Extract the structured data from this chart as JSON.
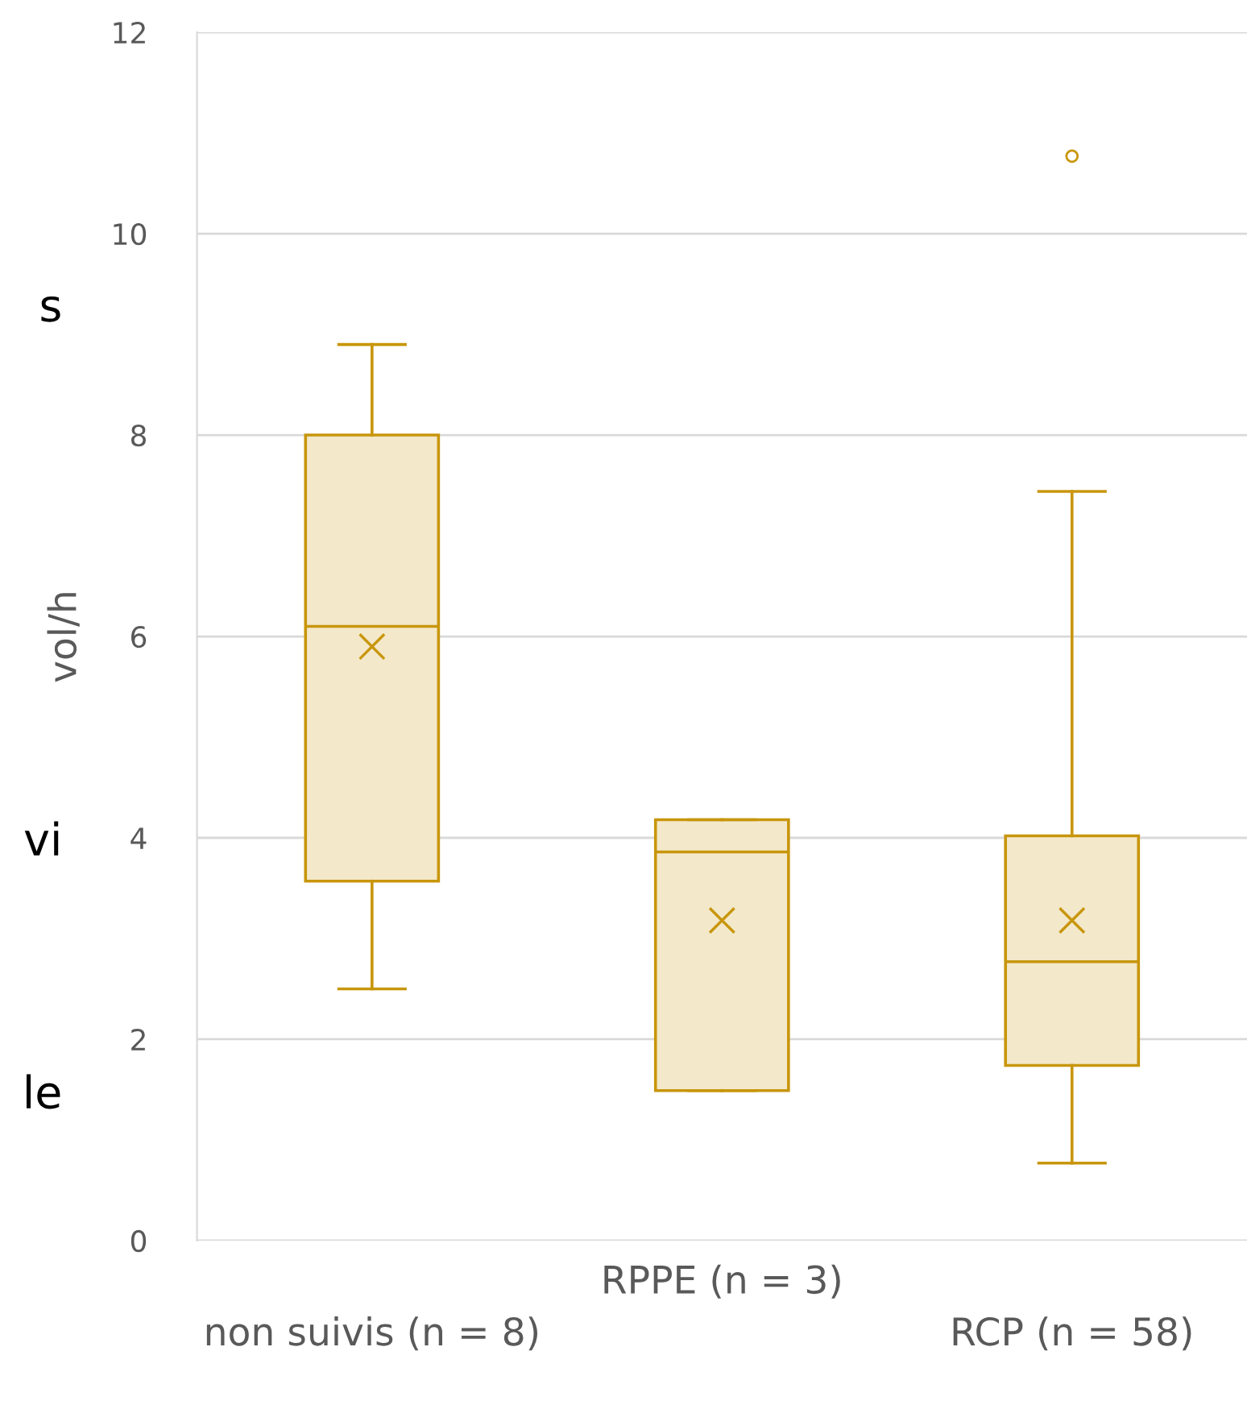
{
  "chart_data": {
    "type": "box",
    "categories": [
      "non suivis (n = 8)",
      "RPPE (n = 3)",
      "RCP (n = 58)"
    ],
    "boxes": [
      {
        "low": 2.5,
        "q1": 3.57,
        "median": 6.1,
        "q3": 8.0,
        "high": 8.9,
        "mean": 5.9
      },
      {
        "low": 1.49,
        "q1": 1.49,
        "median": 3.86,
        "q3": 4.18,
        "high": 4.18,
        "mean": 3.18
      },
      {
        "low": 0.77,
        "q1": 1.74,
        "median": 2.77,
        "q3": 4.02,
        "high": 7.44,
        "mean": 3.18,
        "outliers": [
          10.77
        ]
      }
    ],
    "color": "#c8960c",
    "ylabel": "vol/h",
    "ylim": [
      0,
      12
    ],
    "yticks": [
      0,
      2,
      4,
      6,
      8,
      10,
      12
    ],
    "grid": "y",
    "annotations": [
      "s",
      "vi",
      "le"
    ]
  }
}
